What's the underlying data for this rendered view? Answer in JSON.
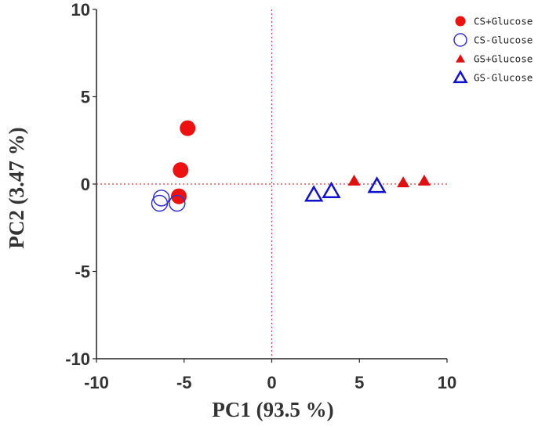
{
  "chart_data": {
    "type": "scatter",
    "xlabel": "PC1  (93.5 %)",
    "ylabel": "PC2  (3.47 %)",
    "xlim": [
      -10,
      10
    ],
    "ylim": [
      -10,
      10
    ],
    "x_ticks": [
      "-10",
      "-5",
      "0",
      "5",
      "10"
    ],
    "y_ticks": [
      "10",
      "5",
      "0",
      "-5",
      "-10"
    ],
    "x_tick_values": [
      -10,
      -5,
      0,
      5,
      10
    ],
    "y_tick_values": [
      10,
      5,
      0,
      -5,
      -10
    ],
    "grid": false,
    "reference_lines": "dotted lines at x = 0 and y = 0",
    "legend_position": "top-right",
    "series": [
      {
        "name": "CS+Glucose",
        "marker": "filled-circle",
        "color": "#ee1111",
        "points": [
          [
            -4.8,
            3.2
          ],
          [
            -5.2,
            0.8
          ],
          [
            -5.3,
            -0.7
          ]
        ]
      },
      {
        "name": "CS-Glucose",
        "marker": "open-circle",
        "color": "#3333cc",
        "points": [
          [
            -6.3,
            -0.8
          ],
          [
            -6.4,
            -1.1
          ],
          [
            -5.4,
            -1.1
          ]
        ]
      },
      {
        "name": "GS+Glucose",
        "marker": "filled-triangle",
        "color": "#dd1111",
        "points": [
          [
            4.7,
            0.2
          ],
          [
            7.5,
            0.1
          ],
          [
            8.7,
            0.2
          ]
        ]
      },
      {
        "name": "GS-Glucose",
        "marker": "open-triangle",
        "color": "#1111cc",
        "points": [
          [
            2.4,
            -0.6
          ],
          [
            3.4,
            -0.4
          ],
          [
            6.0,
            -0.1
          ]
        ]
      }
    ]
  }
}
